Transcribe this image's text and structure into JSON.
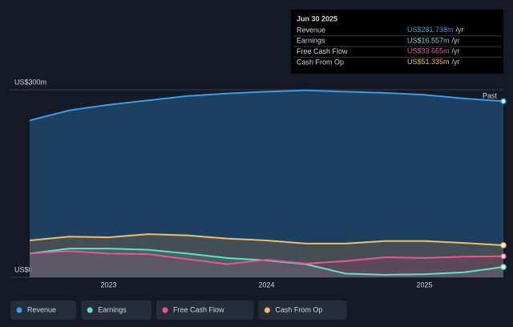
{
  "chart_data": {
    "type": "area",
    "x": [
      2022.5,
      2022.75,
      2023,
      2023.25,
      2023.5,
      2023.75,
      2024,
      2024.25,
      2024.5,
      2024.75,
      2025,
      2025.25,
      2025.5
    ],
    "xlim": [
      2022.5,
      2025.5
    ],
    "xticks": [
      2023,
      2024,
      2025
    ],
    "ylim": [
      0,
      300
    ],
    "yticks": [
      {
        "value": 0,
        "label": "US$0"
      },
      {
        "value": 300,
        "label": "US$300m"
      }
    ],
    "series": [
      {
        "name": "Revenue",
        "color": "#3b9be8",
        "values": [
          251,
          267,
          276,
          283,
          290,
          294,
          297,
          299,
          297,
          295,
          292,
          286,
          281.738
        ]
      },
      {
        "name": "Earnings",
        "color": "#5ee0c8",
        "values": [
          38,
          46,
          46,
          44,
          38,
          31,
          27,
          21,
          6,
          4,
          5,
          8,
          16.557
        ]
      },
      {
        "name": "Free Cash Flow",
        "color": "#e8578a",
        "values": [
          38,
          42,
          38,
          37,
          29,
          21,
          28,
          22,
          26,
          32,
          31,
          33,
          33.665
        ]
      },
      {
        "name": "Cash From Op",
        "color": "#f0bc6a",
        "values": [
          59,
          65,
          64,
          69,
          67,
          62,
          59,
          54,
          54,
          58,
          58,
          55,
          51.335
        ]
      }
    ],
    "annotation": "Past",
    "tooltip": {
      "title": "Jun 30 2025",
      "unit": "/yr",
      "rows": [
        {
          "label": "Revenue",
          "value": "US$281.738m"
        },
        {
          "label": "Earnings",
          "value": "US$16.557m"
        },
        {
          "label": "Free Cash Flow",
          "value": "US$33.665m"
        },
        {
          "label": "Cash From Op",
          "value": "US$51.335m"
        }
      ]
    }
  }
}
